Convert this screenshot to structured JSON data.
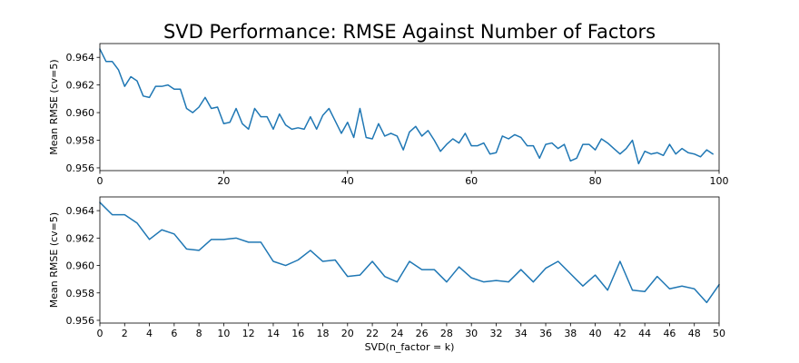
{
  "title": "SVD Performance: RMSE Against Number of Factors",
  "chart_data": [
    {
      "type": "line",
      "xlabel": "",
      "ylabel": "Mean RMSE (cv=5)",
      "xlim": [
        0,
        100
      ],
      "ylim": [
        0.9558,
        0.965
      ],
      "xticks": [
        0,
        20,
        40,
        60,
        80,
        100
      ],
      "yticks": [
        0.956,
        0.958,
        0.96,
        0.962,
        0.964
      ],
      "color": "#1f77b4",
      "x": [
        0,
        1,
        2,
        3,
        4,
        5,
        6,
        7,
        8,
        9,
        10,
        11,
        12,
        13,
        14,
        15,
        16,
        17,
        18,
        19,
        20,
        21,
        22,
        23,
        24,
        25,
        26,
        27,
        28,
        29,
        30,
        31,
        32,
        33,
        34,
        35,
        36,
        37,
        38,
        39,
        40,
        41,
        42,
        43,
        44,
        45,
        46,
        47,
        48,
        49,
        50,
        51,
        52,
        53,
        54,
        55,
        56,
        57,
        58,
        59,
        60,
        61,
        62,
        63,
        64,
        65,
        66,
        67,
        68,
        69,
        70,
        71,
        72,
        73,
        74,
        75,
        76,
        77,
        78,
        79,
        80,
        81,
        82,
        83,
        84,
        85,
        86,
        87,
        88,
        89,
        90,
        91,
        92,
        93,
        94,
        95,
        96,
        97,
        98,
        99
      ],
      "values": [
        0.9646,
        0.9637,
        0.9637,
        0.9631,
        0.9619,
        0.9626,
        0.9623,
        0.9612,
        0.9611,
        0.9619,
        0.9619,
        0.962,
        0.9617,
        0.9617,
        0.9603,
        0.96,
        0.9604,
        0.9611,
        0.9603,
        0.9604,
        0.9592,
        0.9593,
        0.9603,
        0.9592,
        0.9588,
        0.9603,
        0.9597,
        0.9597,
        0.9588,
        0.9599,
        0.9591,
        0.9588,
        0.9589,
        0.9588,
        0.9597,
        0.9588,
        0.9598,
        0.9603,
        0.9594,
        0.9585,
        0.9593,
        0.9582,
        0.9603,
        0.9582,
        0.9581,
        0.9592,
        0.9583,
        0.9585,
        0.9583,
        0.9573,
        0.9586,
        0.959,
        0.9583,
        0.9587,
        0.958,
        0.9572,
        0.9577,
        0.9581,
        0.9578,
        0.9585,
        0.9576,
        0.9576,
        0.9578,
        0.957,
        0.9571,
        0.9583,
        0.9581,
        0.9584,
        0.9582,
        0.9576,
        0.9576,
        0.9567,
        0.9577,
        0.9578,
        0.9574,
        0.9577,
        0.9565,
        0.9567,
        0.9577,
        0.9577,
        0.9573,
        0.9581,
        0.9578,
        0.9574,
        0.957,
        0.9574,
        0.958,
        0.9563,
        0.9572,
        0.957,
        0.9571,
        0.9569,
        0.9577,
        0.957,
        0.9574,
        0.9571,
        0.957,
        0.9568,
        0.9573,
        0.957
      ]
    },
    {
      "type": "line",
      "xlabel": "SVD(n_factor = k)",
      "ylabel": "Mean RMSE (cv=5)",
      "xlim": [
        0,
        50
      ],
      "ylim": [
        0.9558,
        0.965
      ],
      "xticks": [
        0,
        2,
        4,
        6,
        8,
        10,
        12,
        14,
        16,
        18,
        20,
        22,
        24,
        26,
        28,
        30,
        32,
        34,
        36,
        38,
        40,
        42,
        44,
        46,
        48,
        50
      ],
      "yticks": [
        0.956,
        0.958,
        0.96,
        0.962,
        0.964
      ],
      "color": "#1f77b4",
      "x": [
        0,
        1,
        2,
        3,
        4,
        5,
        6,
        7,
        8,
        9,
        10,
        11,
        12,
        13,
        14,
        15,
        16,
        17,
        18,
        19,
        20,
        21,
        22,
        23,
        24,
        25,
        26,
        27,
        28,
        29,
        30,
        31,
        32,
        33,
        34,
        35,
        36,
        37,
        38,
        39,
        40,
        41,
        42,
        43,
        44,
        45,
        46,
        47,
        48,
        49,
        50
      ],
      "values": [
        0.9646,
        0.9637,
        0.9637,
        0.9631,
        0.9619,
        0.9626,
        0.9623,
        0.9612,
        0.9611,
        0.9619,
        0.9619,
        0.962,
        0.9617,
        0.9617,
        0.9603,
        0.96,
        0.9604,
        0.9611,
        0.9603,
        0.9604,
        0.9592,
        0.9593,
        0.9603,
        0.9592,
        0.9588,
        0.9603,
        0.9597,
        0.9597,
        0.9588,
        0.9599,
        0.9591,
        0.9588,
        0.9589,
        0.9588,
        0.9597,
        0.9588,
        0.9598,
        0.9603,
        0.9594,
        0.9585,
        0.9593,
        0.9582,
        0.9603,
        0.9582,
        0.9581,
        0.9592,
        0.9583,
        0.9585,
        0.9583,
        0.9573,
        0.9586
      ]
    }
  ]
}
